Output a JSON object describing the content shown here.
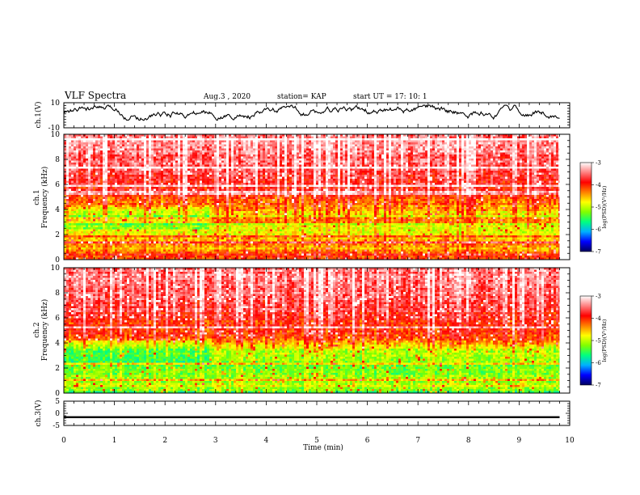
{
  "header": {
    "title": "VLF Spectra",
    "date": "Aug.3 , 2020",
    "station": "station= KAP",
    "start_ut": "start UT = 17: 10: 1"
  },
  "colors": {
    "spectrogram_scale": [
      "#000060",
      "#0000ff",
      "#00b0ff",
      "#00ff80",
      "#80ff00",
      "#ffff00",
      "#ff8000",
      "#ff0000",
      "#ff9090",
      "#ffffff"
    ],
    "trace": "#000000",
    "axis": "#000000"
  },
  "chart_data": [
    {
      "type": "line",
      "panel": "ch1-waveform",
      "ylabel": "ch.1(V)",
      "ylim": [
        -10,
        10
      ],
      "y_ticks": [
        "10",
        "-10"
      ],
      "xlim": [
        0,
        10
      ],
      "x_end": 9.8,
      "description_values": "noisy waveform fluctuating roughly between -4 and 8 V"
    },
    {
      "type": "heatmap",
      "panel": "ch1-spectrogram",
      "channel_label": "ch.1",
      "ylabel": "Frequency (kHz)",
      "ylim": [
        0,
        10
      ],
      "y_ticks": [
        "0",
        "2",
        "4",
        "6",
        "8",
        "10"
      ],
      "xlim": [
        0,
        10
      ],
      "x_end": 9.8,
      "colorbar": {
        "label": "log(PSD)(V²/Hz)",
        "ticks": [
          "-3",
          "-4",
          "-5",
          "-6",
          "-7"
        ],
        "range": [
          -7,
          -3
        ]
      },
      "profile_khz": [
        {
          "f": 0.0,
          "v": -4.2
        },
        {
          "f": 0.5,
          "v": -4.0
        },
        {
          "f": 1.0,
          "v": -4.6
        },
        {
          "f": 1.5,
          "v": -4.3
        },
        {
          "f": 2.0,
          "v": -4.9
        },
        {
          "f": 2.5,
          "v": -4.8
        },
        {
          "f": 3.0,
          "v": -5.0
        },
        {
          "f": 3.5,
          "v": -4.9
        },
        {
          "f": 4.0,
          "v": -4.5
        },
        {
          "f": 4.5,
          "v": -4.3
        },
        {
          "f": 5.0,
          "v": -4.1
        },
        {
          "f": 6.0,
          "v": -3.8
        },
        {
          "f": 7.0,
          "v": -3.7
        },
        {
          "f": 8.0,
          "v": -3.6
        },
        {
          "f": 9.0,
          "v": -3.5
        },
        {
          "f": 10.0,
          "v": -3.5
        }
      ]
    },
    {
      "type": "heatmap",
      "panel": "ch2-spectrogram",
      "channel_label": "ch.2",
      "ylabel": "Frequency (kHz)",
      "ylim": [
        0,
        10
      ],
      "y_ticks": [
        "0",
        "2",
        "4",
        "6",
        "8",
        "10"
      ],
      "xlim": [
        0,
        10
      ],
      "x_end": 9.8,
      "colorbar": {
        "label": "log(PSD)(V²/Hz)",
        "ticks": [
          "-3",
          "-4",
          "-5",
          "-6",
          "-7"
        ],
        "range": [
          -7,
          -3
        ]
      },
      "profile_khz": [
        {
          "f": 0.0,
          "v": -5.8
        },
        {
          "f": 0.3,
          "v": -5.3
        },
        {
          "f": 0.7,
          "v": -4.9
        },
        {
          "f": 1.0,
          "v": -5.1
        },
        {
          "f": 1.5,
          "v": -5.2
        },
        {
          "f": 2.0,
          "v": -5.2
        },
        {
          "f": 2.5,
          "v": -5.3
        },
        {
          "f": 3.0,
          "v": -5.2
        },
        {
          "f": 3.5,
          "v": -5.0
        },
        {
          "f": 4.0,
          "v": -4.6
        },
        {
          "f": 4.5,
          "v": -4.2
        },
        {
          "f": 5.0,
          "v": -4.0
        },
        {
          "f": 6.0,
          "v": -3.9
        },
        {
          "f": 7.0,
          "v": -3.7
        },
        {
          "f": 8.0,
          "v": -3.6
        },
        {
          "f": 9.0,
          "v": -3.5
        },
        {
          "f": 10.0,
          "v": -3.5
        }
      ]
    },
    {
      "type": "line",
      "panel": "ch3-waveform",
      "ylabel": "ch.3(V)",
      "ylim": [
        -5,
        5
      ],
      "y_ticks": [
        "5",
        "0",
        "-5"
      ],
      "xlim": [
        0,
        10
      ],
      "x_end": 9.8,
      "constant_band": [
        -2.0,
        -1.2
      ]
    }
  ],
  "x_axis": {
    "label": "Time (min)",
    "ticks": [
      "0",
      "1",
      "2",
      "3",
      "4",
      "5",
      "6",
      "7",
      "8",
      "9",
      "10"
    ]
  }
}
